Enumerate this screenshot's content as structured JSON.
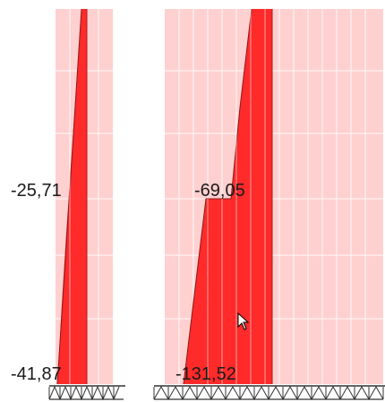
{
  "colors": {
    "background": "#ffffff",
    "panel_fill": "#ffd0d0",
    "diagram_fill": "#ff2a2a",
    "diagram_edge": "#8b1a1a",
    "grid": "#ffffff",
    "support": "#333333"
  },
  "diagram": {
    "left_wall": {
      "labels": [
        "-25,71",
        "-41,87"
      ]
    },
    "right_wall": {
      "labels": [
        "-69,05",
        "-131,52"
      ]
    },
    "cursor_icon": "mouse-pointer-icon",
    "support_icon": "fixed-support-hatch-icon"
  }
}
